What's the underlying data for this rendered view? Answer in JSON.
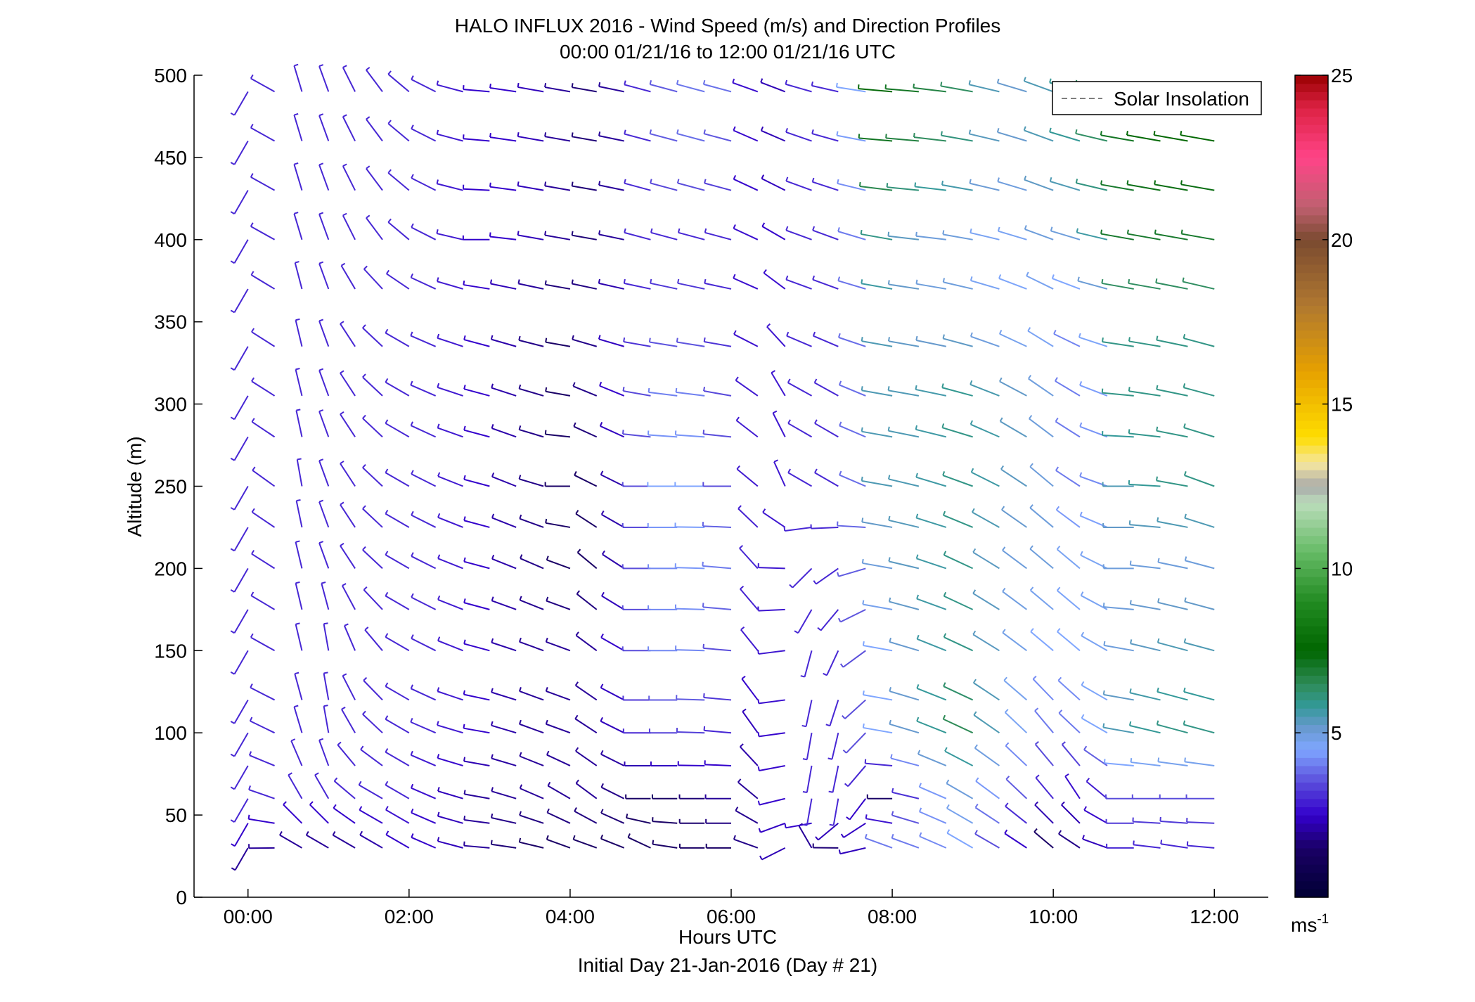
{
  "chart_data": {
    "type": "wind_barb_profile",
    "title": "HALO INFLUX 2016 - Wind Speed (m/s) and Direction Profiles",
    "subtitle": "00:00 01/21/16 to 12:00 01/21/16  UTC",
    "xlabel": "Hours UTC",
    "xlabel2": "Initial Day 21-Jan-2016 (Day # 21)",
    "ylabel": "Altitude (m)",
    "xlim": [
      -0.67,
      12.67
    ],
    "ylim": [
      0,
      500
    ],
    "x_ticks": [
      0,
      2,
      4,
      6,
      8,
      10,
      12
    ],
    "x_tick_labels": [
      "00:00",
      "02:00",
      "04:00",
      "06:00",
      "08:00",
      "10:00",
      "12:00"
    ],
    "y_ticks": [
      0,
      50,
      100,
      150,
      200,
      250,
      300,
      350,
      400,
      450,
      500
    ],
    "y_tick_labels": [
      "0",
      "50",
      "100",
      "150",
      "200",
      "250",
      "300",
      "350",
      "400",
      "450",
      "500"
    ],
    "legend": {
      "label": "Solar Insolation",
      "position": "top-right",
      "style": "dashed gray line"
    },
    "colorbar": {
      "range": [
        0,
        25
      ],
      "ticks": [
        5,
        10,
        15,
        20,
        25
      ],
      "tick_labels": [
        "5",
        "10",
        "15",
        "20",
        "25"
      ],
      "unit_base": "ms",
      "unit_exp": "-1",
      "stops": [
        {
          "v": 0,
          "c": "#000033"
        },
        {
          "v": 1.5,
          "c": "#1a0066"
        },
        {
          "v": 2.5,
          "c": "#3300cc"
        },
        {
          "v": 3.5,
          "c": "#5a4ddb"
        },
        {
          "v": 4.5,
          "c": "#7fa6ff"
        },
        {
          "v": 5.2,
          "c": "#6699cc"
        },
        {
          "v": 5.8,
          "c": "#339999"
        },
        {
          "v": 6.5,
          "c": "#2e8b57"
        },
        {
          "v": 7.5,
          "c": "#006600"
        },
        {
          "v": 9.0,
          "c": "#228b22"
        },
        {
          "v": 10.5,
          "c": "#66bb66"
        },
        {
          "v": 12.0,
          "c": "#bbddbb"
        },
        {
          "v": 12.5,
          "c": "#aaaaaa"
        },
        {
          "v": 13.2,
          "c": "#f5e6a0"
        },
        {
          "v": 14.0,
          "c": "#ffdd00"
        },
        {
          "v": 16.0,
          "c": "#e6a100"
        },
        {
          "v": 18.0,
          "c": "#b07830"
        },
        {
          "v": 20.0,
          "c": "#7a4a30"
        },
        {
          "v": 21.0,
          "c": "#c06070"
        },
        {
          "v": 22.5,
          "c": "#ff4488"
        },
        {
          "v": 24.0,
          "c": "#dd2244"
        },
        {
          "v": 25.0,
          "c": "#990000"
        }
      ]
    },
    "wind_field": {
      "times_hours": [
        0,
        0.33,
        0.67,
        1.0,
        1.33,
        1.67,
        2.0,
        2.33,
        2.67,
        3.0,
        3.33,
        3.67,
        4.0,
        4.33,
        4.67,
        5.0,
        5.33,
        5.67,
        6.0,
        6.33,
        6.67,
        7.0,
        7.33,
        7.67,
        8.0,
        8.33,
        8.67,
        9.0,
        9.33,
        9.67,
        10.0,
        10.33,
        10.67,
        11.0,
        11.33,
        11.67,
        12.0
      ],
      "altitudes_m": [
        30,
        45,
        60,
        80,
        100,
        120,
        150,
        175,
        200,
        225,
        250,
        280,
        305,
        335,
        370,
        400,
        430,
        460,
        490
      ],
      "direction_keyframes": {
        "hours": [
          0,
          0.5,
          1.0,
          1.5,
          2.0,
          2.5,
          3.0,
          3.5,
          4.0,
          4.5,
          5.0,
          5.5,
          6.0,
          6.5,
          6.8,
          7.0,
          7.5,
          8.0,
          8.5,
          9.0,
          9.5,
          10.0,
          10.5,
          11.0,
          11.5,
          12.0
        ],
        "levels_m": [
          30,
          60,
          100,
          150,
          200,
          250,
          300,
          350,
          400,
          450,
          500
        ],
        "deg_from": [
          [
            210,
            300,
            300,
            300,
            300,
            290,
            275,
            280,
            290,
            290,
            295,
            270,
            270,
            300,
            200,
            330,
            240,
            290,
            290,
            300,
            300,
            310,
            300,
            270,
            280,
            275
          ],
          [
            210,
            330,
            330,
            300,
            300,
            290,
            280,
            290,
            300,
            310,
            270,
            270,
            270,
            330,
            200,
            190,
            190,
            270,
            290,
            300,
            310,
            320,
            330,
            270,
            270,
            270
          ],
          [
            210,
            340,
            350,
            320,
            300,
            290,
            280,
            290,
            290,
            310,
            270,
            270,
            275,
            350,
            195,
            190,
            195,
            280,
            290,
            295,
            310,
            320,
            310,
            280,
            285,
            285
          ],
          [
            210,
            345,
            350,
            330,
            300,
            295,
            285,
            290,
            290,
            315,
            270,
            270,
            275,
            345,
            200,
            195,
            210,
            280,
            290,
            295,
            305,
            310,
            310,
            280,
            285,
            285
          ],
          [
            210,
            350,
            340,
            320,
            300,
            295,
            285,
            295,
            290,
            320,
            270,
            270,
            275,
            340,
            220,
            225,
            240,
            280,
            285,
            295,
            305,
            310,
            310,
            270,
            280,
            285
          ],
          [
            210,
            355,
            340,
            320,
            300,
            295,
            285,
            295,
            270,
            310,
            270,
            270,
            270,
            330,
            340,
            300,
            300,
            280,
            285,
            290,
            300,
            310,
            300,
            270,
            275,
            290
          ],
          [
            210,
            350,
            340,
            320,
            300,
            290,
            285,
            290,
            280,
            300,
            280,
            275,
            280,
            320,
            340,
            300,
            300,
            280,
            280,
            285,
            295,
            305,
            300,
            275,
            280,
            285
          ],
          [
            210,
            350,
            340,
            320,
            300,
            290,
            285,
            285,
            280,
            285,
            280,
            280,
            280,
            300,
            320,
            290,
            290,
            280,
            280,
            285,
            290,
            300,
            290,
            280,
            280,
            285
          ],
          [
            210,
            345,
            340,
            330,
            310,
            290,
            270,
            280,
            280,
            280,
            285,
            285,
            285,
            300,
            300,
            290,
            290,
            280,
            275,
            280,
            285,
            290,
            285,
            280,
            280,
            280
          ],
          [
            210,
            345,
            340,
            330,
            310,
            290,
            275,
            280,
            280,
            280,
            285,
            285,
            285,
            300,
            290,
            290,
            285,
            275,
            275,
            280,
            285,
            290,
            285,
            280,
            280,
            280
          ],
          [
            210,
            345,
            340,
            330,
            310,
            290,
            275,
            280,
            280,
            280,
            285,
            285,
            285,
            290,
            290,
            285,
            280,
            275,
            275,
            280,
            285,
            290,
            285,
            280,
            280,
            280
          ]
        ],
        "speed_ms": [
          [
            2.0,
            2.0,
            2.0,
            2.0,
            2.5,
            2.5,
            2.0,
            1.5,
            1.5,
            1.5,
            1.5,
            1.5,
            1.5,
            2.0,
            2.5,
            2.0,
            1.5,
            4.0,
            4.0,
            4.5,
            3.0,
            1.5,
            2.0,
            3.0,
            3.0,
            3.0
          ],
          [
            3.0,
            3.0,
            3.0,
            3.0,
            3.0,
            2.5,
            2.0,
            2.0,
            2.0,
            2.0,
            1.5,
            1.5,
            2.0,
            2.0,
            3.0,
            3.0,
            3.0,
            1.5,
            4.0,
            5.0,
            4.0,
            3.0,
            2.5,
            3.5,
            3.5,
            3.5
          ],
          [
            3.0,
            3.0,
            3.0,
            3.0,
            3.0,
            3.0,
            2.5,
            2.0,
            2.0,
            2.0,
            3.0,
            3.5,
            3.0,
            2.0,
            3.0,
            3.0,
            3.0,
            4.5,
            5.5,
            6.5,
            5.0,
            4.0,
            4.0,
            5.5,
            6.0,
            6.0
          ],
          [
            3.0,
            3.0,
            3.0,
            3.0,
            3.0,
            3.0,
            2.5,
            2.0,
            2.0,
            2.0,
            3.5,
            4.5,
            3.5,
            2.5,
            3.0,
            3.0,
            3.0,
            4.5,
            5.5,
            6.0,
            5.0,
            4.5,
            4.5,
            5.0,
            5.5,
            5.5
          ],
          [
            3.0,
            3.0,
            3.0,
            3.0,
            3.0,
            3.0,
            2.5,
            2.0,
            1.5,
            1.5,
            3.5,
            4.5,
            4.0,
            2.5,
            3.0,
            3.0,
            3.0,
            5.0,
            5.5,
            6.0,
            5.0,
            5.0,
            4.5,
            5.0,
            5.0,
            5.0
          ],
          [
            3.0,
            3.0,
            3.0,
            3.0,
            3.0,
            3.0,
            2.5,
            2.0,
            1.5,
            1.5,
            3.5,
            5.0,
            3.5,
            2.5,
            3.0,
            3.0,
            3.0,
            5.5,
            5.5,
            6.0,
            5.5,
            5.0,
            3.5,
            5.5,
            6.0,
            6.0
          ],
          [
            3.0,
            3.0,
            3.0,
            3.0,
            3.0,
            3.0,
            2.5,
            2.0,
            1.5,
            2.0,
            3.5,
            4.5,
            3.5,
            2.5,
            3.0,
            3.0,
            3.0,
            5.5,
            5.5,
            6.0,
            5.5,
            5.0,
            3.5,
            6.0,
            6.0,
            6.0
          ],
          [
            3.0,
            3.0,
            3.0,
            3.0,
            3.0,
            3.0,
            2.5,
            2.0,
            1.5,
            2.0,
            3.0,
            3.5,
            3.0,
            2.5,
            3.0,
            3.0,
            3.0,
            5.5,
            5.0,
            5.0,
            4.5,
            4.5,
            4.0,
            6.0,
            6.0,
            6.0
          ],
          [
            3.0,
            3.0,
            3.0,
            3.0,
            3.0,
            3.0,
            2.5,
            2.5,
            2.0,
            1.5,
            3.0,
            3.0,
            3.0,
            2.5,
            2.5,
            3.0,
            3.0,
            6.0,
            5.0,
            5.0,
            4.5,
            5.0,
            5.0,
            7.0,
            7.0,
            7.0
          ],
          [
            3.0,
            3.0,
            3.0,
            3.0,
            3.0,
            3.0,
            2.5,
            2.5,
            2.0,
            1.5,
            3.0,
            4.0,
            3.5,
            2.0,
            2.5,
            3.0,
            3.0,
            7.0,
            6.5,
            6.0,
            5.0,
            5.5,
            6.0,
            7.0,
            7.5,
            7.5
          ],
          [
            3.0,
            3.0,
            3.0,
            3.0,
            3.0,
            3.0,
            2.5,
            2.5,
            2.0,
            1.5,
            3.0,
            4.0,
            4.0,
            2.0,
            2.5,
            3.0,
            3.0,
            7.5,
            7.0,
            6.5,
            5.0,
            5.5,
            6.0,
            7.5,
            8.0,
            8.0
          ]
        ]
      }
    }
  }
}
